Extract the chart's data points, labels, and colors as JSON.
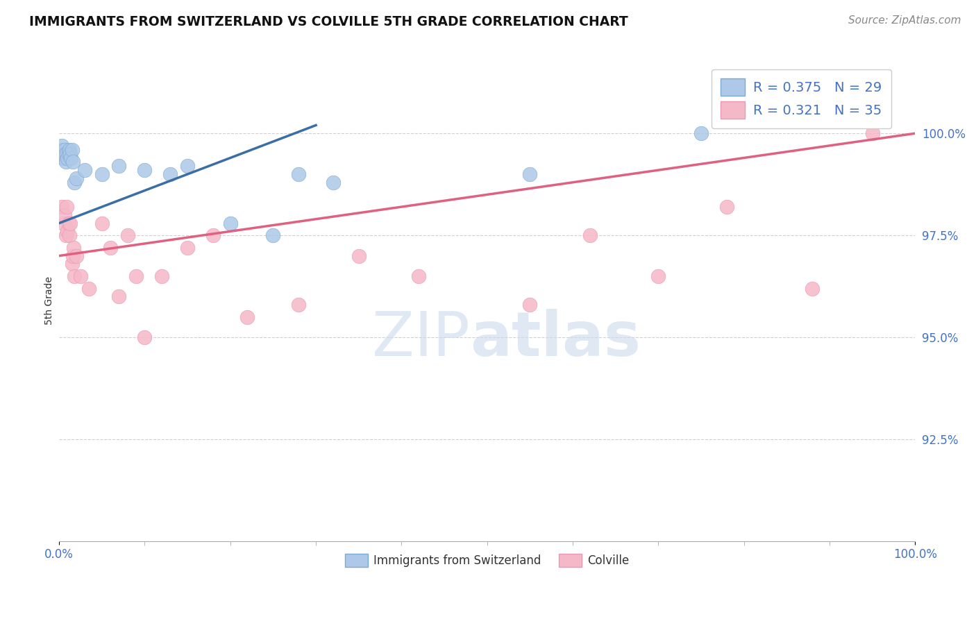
{
  "title": "IMMIGRANTS FROM SWITZERLAND VS COLVILLE 5TH GRADE CORRELATION CHART",
  "source_text": "Source: ZipAtlas.com",
  "ylabel": "5th Grade",
  "watermark_zip": "ZIP",
  "watermark_atlas": "atlas",
  "legend_blue_label": "Immigrants from Switzerland",
  "legend_pink_label": "Colville",
  "R_blue": 0.375,
  "N_blue": 29,
  "R_pink": 0.321,
  "N_pink": 35,
  "blue_color": "#adc8e8",
  "blue_edge_color": "#7aaad0",
  "blue_line_color": "#3a6ea5",
  "pink_color": "#f5b8c8",
  "pink_edge_color": "#e898b0",
  "pink_line_color": "#e06080",
  "xmin": 0.0,
  "xmax": 100.0,
  "ymin": 90.0,
  "ymax": 101.8,
  "yticks": [
    92.5,
    95.0,
    97.5,
    100.0
  ],
  "ytick_labels": [
    "92.5%",
    "95.0%",
    "97.5%",
    "100.0%"
  ],
  "xtick_labels": [
    "0.0%",
    "100.0%"
  ],
  "grid_color": "#d0d0d0",
  "blue_x": [
    0.2,
    0.3,
    0.4,
    0.5,
    0.6,
    0.7,
    0.8,
    0.9,
    1.0,
    1.1,
    1.2,
    1.3,
    1.4,
    1.5,
    1.6,
    1.8,
    2.0,
    3.0,
    5.0,
    7.0,
    10.0,
    13.0,
    15.0,
    20.0,
    25.0,
    28.0,
    32.0,
    55.0,
    75.0
  ],
  "blue_y": [
    99.6,
    99.7,
    99.5,
    99.4,
    99.6,
    99.5,
    99.3,
    99.5,
    99.4,
    99.5,
    99.6,
    99.5,
    99.4,
    99.6,
    99.3,
    98.8,
    98.9,
    99.1,
    99.0,
    99.2,
    99.1,
    99.0,
    99.2,
    97.8,
    97.5,
    99.0,
    98.8,
    99.0,
    100.0
  ],
  "pink_x": [
    0.3,
    0.5,
    0.6,
    0.8,
    0.9,
    1.0,
    1.1,
    1.2,
    1.3,
    1.5,
    1.6,
    1.7,
    1.8,
    2.0,
    2.5,
    3.5,
    5.0,
    6.0,
    7.0,
    8.0,
    9.0,
    10.0,
    12.0,
    15.0,
    18.0,
    22.0,
    28.0,
    35.0,
    42.0,
    55.0,
    62.0,
    70.0,
    78.0,
    88.0,
    95.0
  ],
  "pink_y": [
    98.2,
    97.8,
    98.0,
    97.5,
    98.2,
    97.6,
    97.8,
    97.5,
    97.8,
    96.8,
    97.0,
    97.2,
    96.5,
    97.0,
    96.5,
    96.2,
    97.8,
    97.2,
    96.0,
    97.5,
    96.5,
    95.0,
    96.5,
    97.2,
    97.5,
    95.5,
    95.8,
    97.0,
    96.5,
    95.8,
    97.5,
    96.5,
    98.2,
    96.2,
    100.0
  ],
  "blue_trend_x0": 0.0,
  "blue_trend_y0": 97.8,
  "blue_trend_x1": 30.0,
  "blue_trend_y1": 100.2,
  "pink_trend_x0": 0.0,
  "pink_trend_y0": 97.0,
  "pink_trend_x1": 100.0,
  "pink_trend_y1": 100.0
}
